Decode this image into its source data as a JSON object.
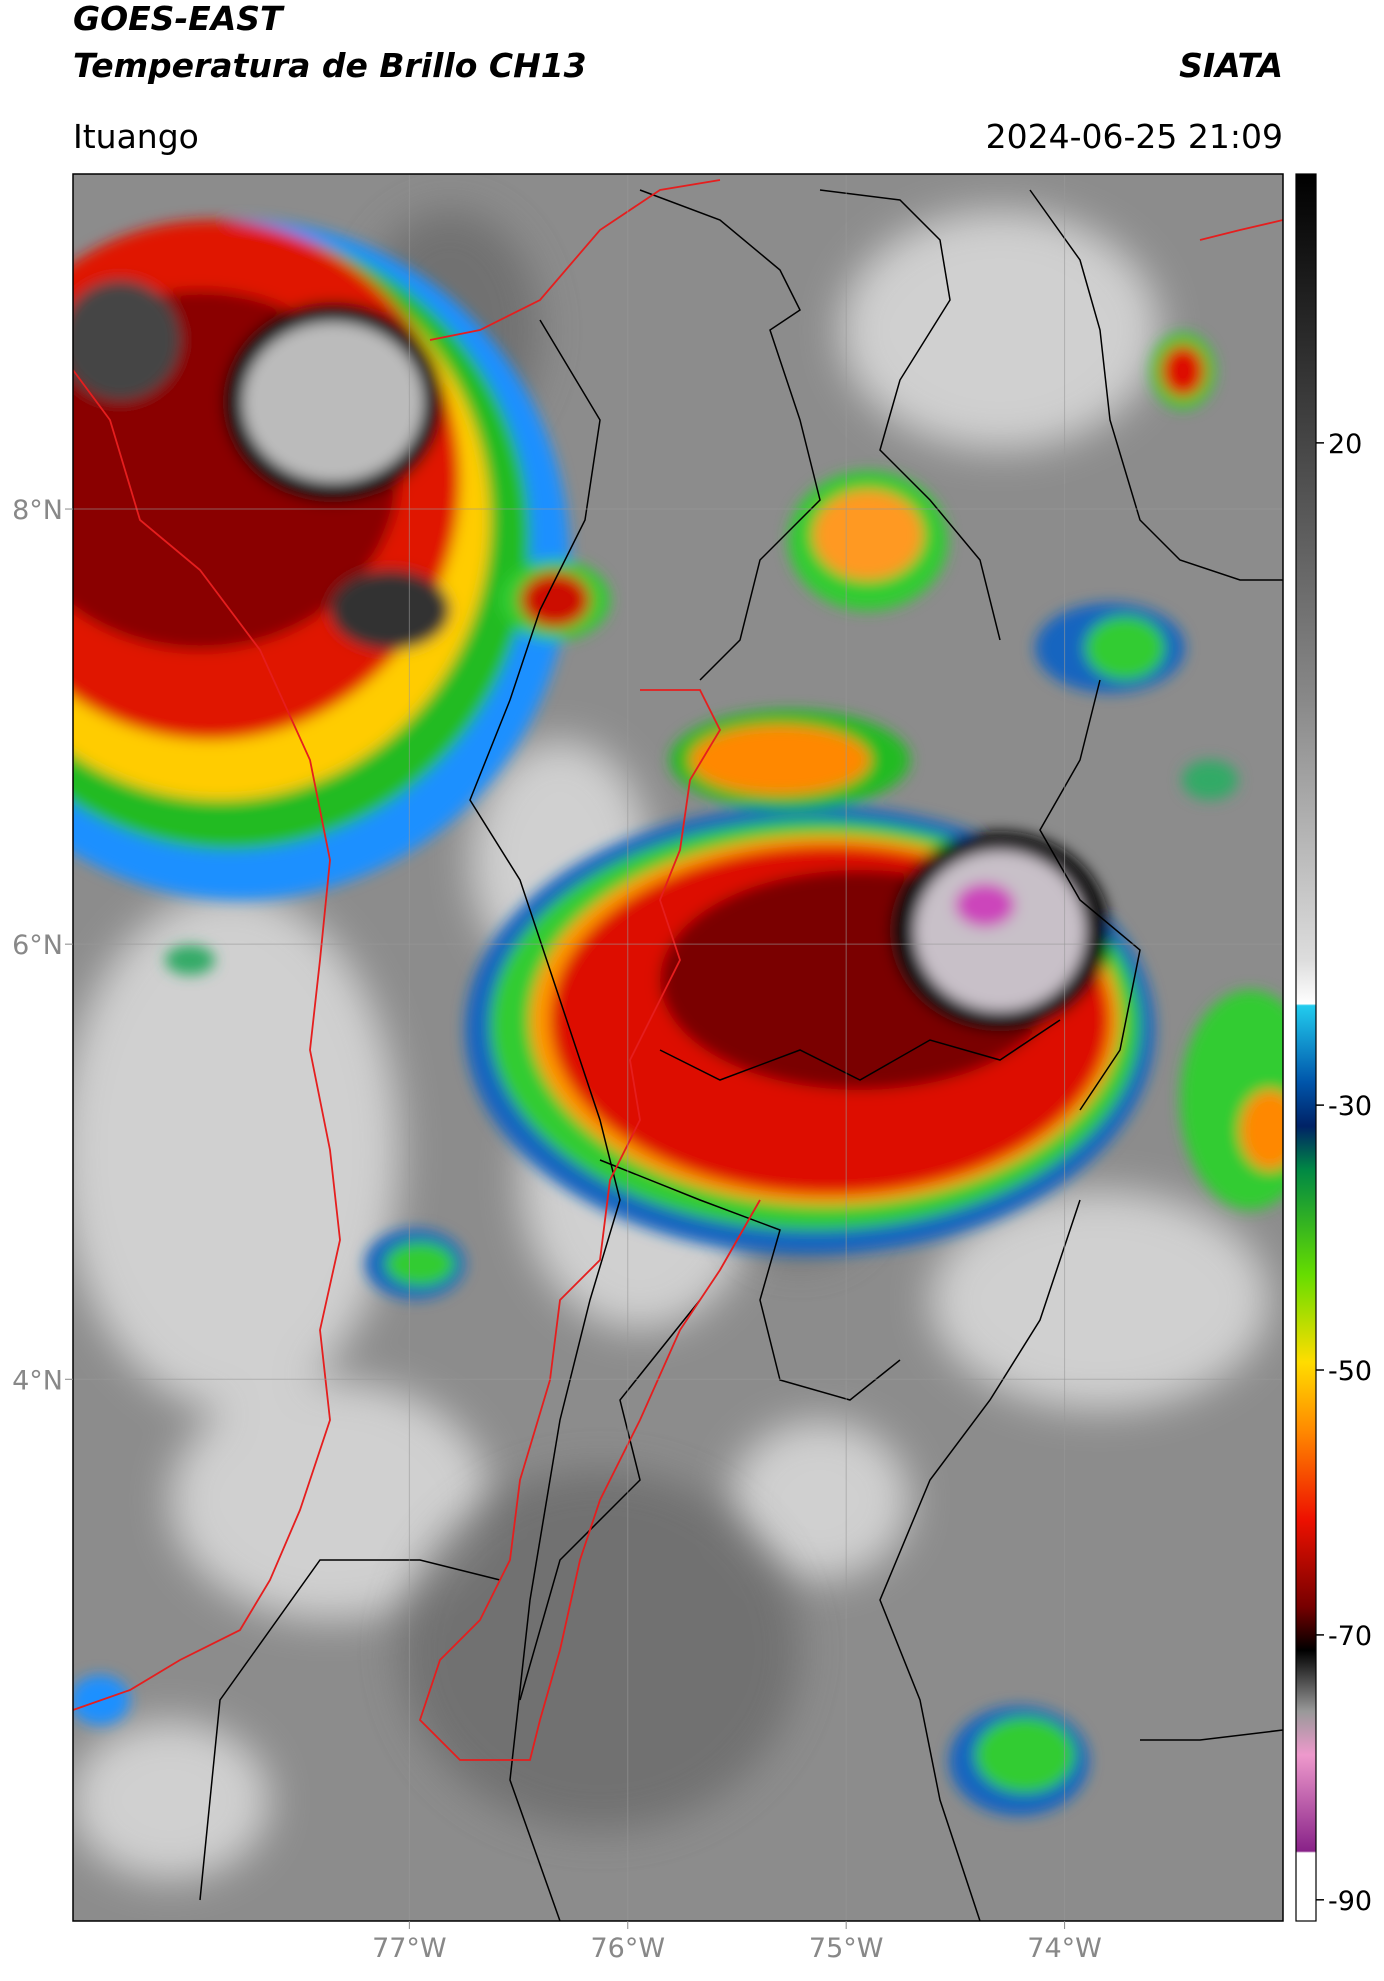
{
  "header": {
    "title": "GOES-EAST",
    "subtitle": "Temperatura de Brillo CH13",
    "source": "SIATA",
    "location": "Ituango",
    "datetime": "2024-06-25 21:09"
  },
  "map": {
    "xlim": [
      -78.54,
      -73.0
    ],
    "ylim": [
      1.51,
      9.54
    ],
    "xticks": [
      {
        "value": -77,
        "label": "77°W"
      },
      {
        "value": -76,
        "label": "76°W"
      },
      {
        "value": -75,
        "label": "75°W"
      },
      {
        "value": -74,
        "label": "74°W"
      }
    ],
    "yticks": [
      {
        "value": 8,
        "label": "8°N"
      },
      {
        "value": 6,
        "label": "6°N"
      },
      {
        "value": 4,
        "label": "4°N"
      }
    ],
    "grid": true
  },
  "colorbar": {
    "lim": [
      -91.6,
      40.3
    ],
    "ticks": [
      20,
      -30,
      -50,
      -70,
      -90
    ]
  }
}
